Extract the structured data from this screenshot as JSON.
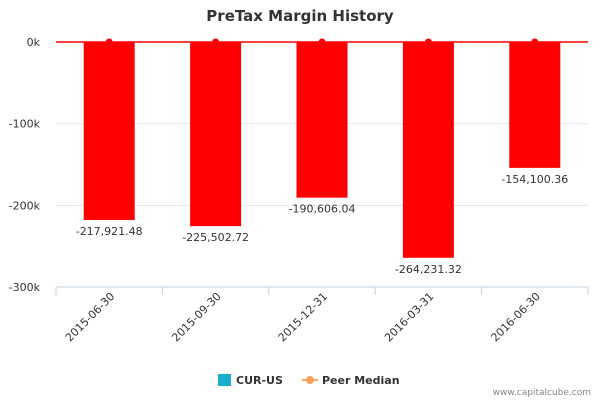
{
  "chart_data": {
    "type": "bar",
    "title": "PreTax Margin History",
    "categories": [
      "2015-06-30",
      "2015-09-30",
      "2015-12-31",
      "2016-03-31",
      "2016-06-30"
    ],
    "series": [
      {
        "name": "CUR-US",
        "values": [
          -217921.48,
          -225502.72,
          -190606.04,
          -264231.32,
          -154100.36
        ],
        "value_labels": [
          "-217,921.48",
          "-225,502.72",
          "-190,606.04",
          "-264,231.32",
          "-154,100.36"
        ],
        "color": "#ff0000",
        "legend_color": "#1aadce"
      },
      {
        "name": "Peer Median",
        "type": "line",
        "values": [
          0,
          0,
          0,
          0,
          0
        ],
        "color": "#ff0000",
        "legend_color": "#f7a35c"
      }
    ],
    "yticks": [
      {
        "value": 0,
        "label": "0k"
      },
      {
        "value": -100000,
        "label": "-100k"
      },
      {
        "value": -200000,
        "label": "-200k"
      },
      {
        "value": -300000,
        "label": "-300k"
      }
    ],
    "ylim": [
      -300000,
      0
    ],
    "xlabel": "",
    "ylabel": "",
    "legend_position": "bottom-center"
  },
  "watermark": "www.capitalcube.com"
}
